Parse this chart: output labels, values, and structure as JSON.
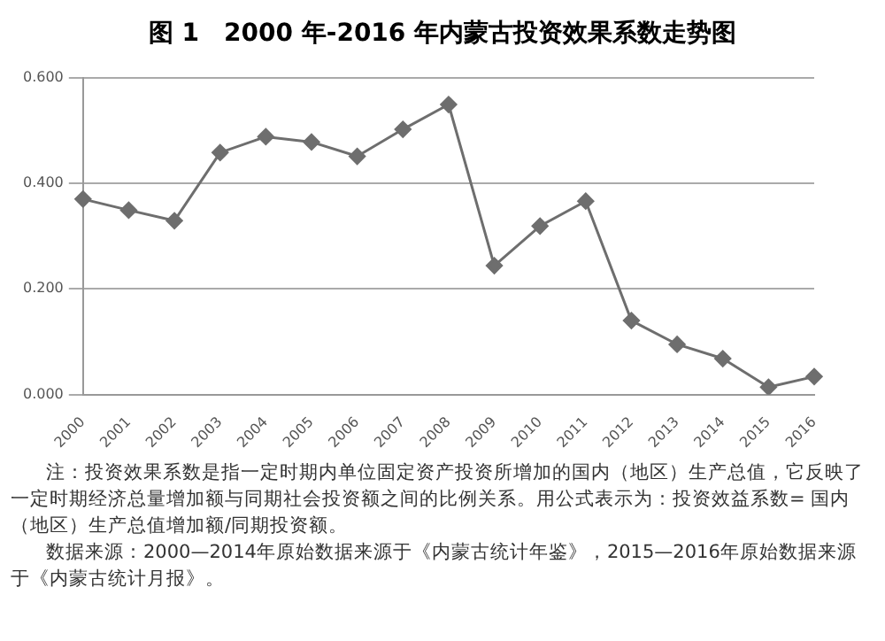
{
  "chart_data": {
    "type": "line",
    "title": "图 1　2000 年-2016 年内蒙古投资效果系数走势图",
    "categories": [
      "2000",
      "2001",
      "2002",
      "2003",
      "2004",
      "2005",
      "2006",
      "2007",
      "2008",
      "2009",
      "2010",
      "2011",
      "2012",
      "2013",
      "2014",
      "2015",
      "2016"
    ],
    "series": [
      {
        "color": "#6e6e6e",
        "values": [
          0.37,
          0.349,
          0.329,
          0.458,
          0.488,
          0.478,
          0.451,
          0.502,
          0.549,
          0.244,
          0.319,
          0.366,
          0.14,
          0.095,
          0.068,
          0.014,
          0.034
        ]
      }
    ],
    "ylim": [
      0,
      0.6
    ],
    "yticks": [
      {
        "value": 0,
        "label": "0.000"
      },
      {
        "value": 0.2,
        "label": "0.200"
      },
      {
        "value": 0.4,
        "label": "0.400"
      },
      {
        "value": 0.6,
        "label": "0.600"
      }
    ],
    "grid": "y",
    "legend": false,
    "marker": "diamond",
    "line_style": "solid",
    "annotations": [
      "注：投资效果系数是指一定时期内单位固定资产投资所增加的国内（地区）生产总值，它反映了一定时期经济总量增加额与同期社会投资额之间的比例关系。用公式表示为：投资效益系数= 国内（地区）生产总值增加额/同期投资额。",
      "数据来源：2000—2014年原始数据来源于《内蒙古统计年鉴》，2015—2016年原始数据来源于《内蒙古统计月报》。"
    ]
  }
}
